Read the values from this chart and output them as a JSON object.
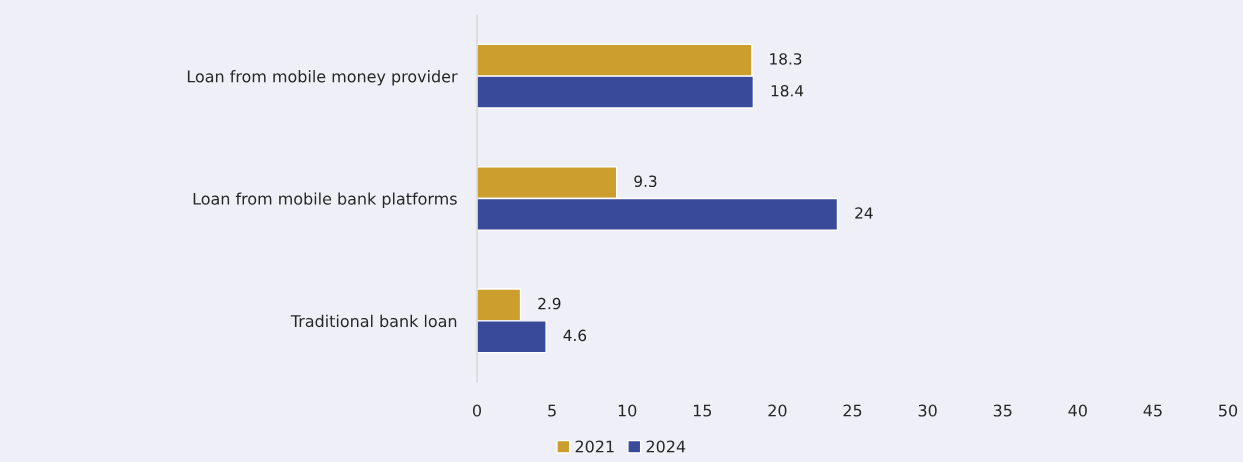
{
  "chart_data": {
    "type": "bar",
    "orientation": "horizontal",
    "categories": [
      "Loan from mobile money provider",
      "Loan from mobile bank platforms",
      "Traditional bank loan"
    ],
    "series": [
      {
        "name": "2021",
        "color": "#cc9e2e",
        "values": [
          18.3,
          9.3,
          2.9
        ]
      },
      {
        "name": "2024",
        "color": "#3a4a9a",
        "values": [
          18.4,
          24,
          4.6
        ]
      }
    ],
    "xlim": [
      0,
      50
    ],
    "xticks": [
      0,
      5,
      10,
      15,
      20,
      25,
      30,
      35,
      40,
      45,
      50
    ],
    "data_labels": true,
    "grid": false,
    "legend": "bottom"
  }
}
